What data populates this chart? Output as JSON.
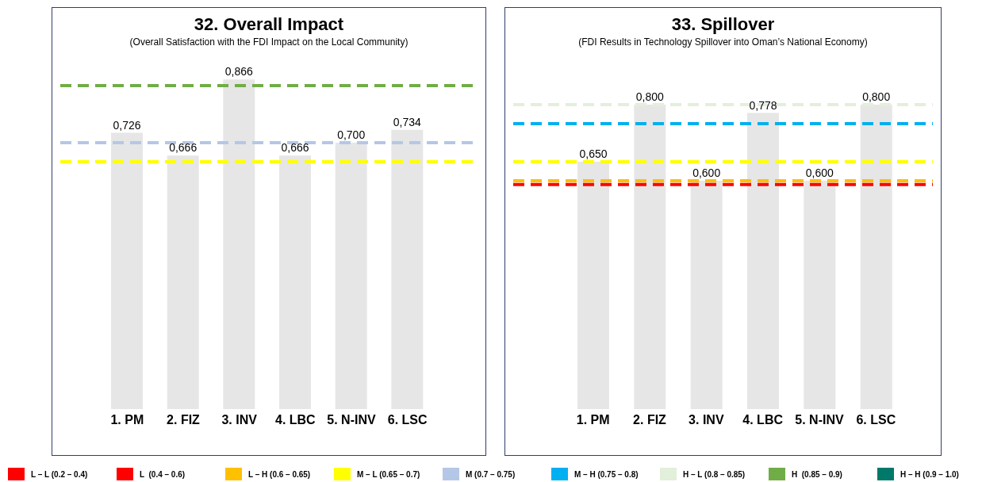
{
  "chart_data": [
    {
      "type": "bar",
      "title": "32. Overall Impact",
      "subtitle": "(Overall Satisfaction with the FDI Impact on the Local Community)",
      "categories": [
        "1. PM",
        "2. FIZ",
        "3. INV",
        "4. LBC",
        "5. N-INV",
        "6. LSC"
      ],
      "values": [
        0.726,
        0.666,
        0.866,
        0.666,
        0.7,
        0.734
      ],
      "color": "#e6e6e6",
      "value_labels": [
        "0,726",
        "0,666",
        "0,866",
        "0,666",
        "0,700",
        "0,734"
      ],
      "line_style": "dashed",
      "ref_lines": [
        {
          "axis": "y",
          "value": 0.85,
          "color": "#70ad47"
        },
        {
          "axis": "y",
          "value": 0.7,
          "color": "#b4c7e7"
        },
        {
          "axis": "y",
          "value": 0.65,
          "color": "#ffff00"
        }
      ]
    },
    {
      "type": "bar",
      "title": "33. Spillover",
      "subtitle": "(FDI Results in Technology Spillover into Oman’s National Economy)",
      "categories": [
        "1. PM",
        "2. FIZ",
        "3. INV",
        "4. LBC",
        "5. N-INV",
        "6. LSC"
      ],
      "values": [
        0.65,
        0.8,
        0.6,
        0.778,
        0.6,
        0.8
      ],
      "color": "#e6e6e6",
      "value_labels": [
        "0,650",
        "0,800",
        "0,600",
        "0,778",
        "0,600",
        "0,800"
      ],
      "line_style": "dashed",
      "ref_lines": [
        {
          "axis": "y",
          "value": 0.8,
          "color": "#e2efda"
        },
        {
          "axis": "y",
          "value": 0.75,
          "color": "#00b0f0"
        },
        {
          "axis": "y",
          "value": 0.65,
          "color": "#ffff00"
        },
        {
          "axis": "y",
          "value": 0.6,
          "color": "#ffc000"
        },
        {
          "axis": "y",
          "value": 0.59,
          "color": "#ff0000"
        }
      ]
    },
    {
      "type": "other",
      "categories": [
        "L – L (0.2 – 0.4)",
        "L  (0.4 – 0.6)",
        "L – H (0.6 – 0.65)",
        "M – L (0.65 – 0.7)",
        "M (0.7 – 0.75)",
        "M – H (0.75 – 0.8)",
        "H – L (0.8 – 0.85)",
        "H  (0.85 – 0.9)",
        "H – H (0.9 – 1.0)"
      ],
      "colors": [
        "#ff0000",
        "#ff0000",
        "#ffc000",
        "#ffff00",
        "#b4c7e7",
        "#00b0f0",
        "#e2efda",
        "#70ad47",
        "#00796b"
      ]
    }
  ]
}
